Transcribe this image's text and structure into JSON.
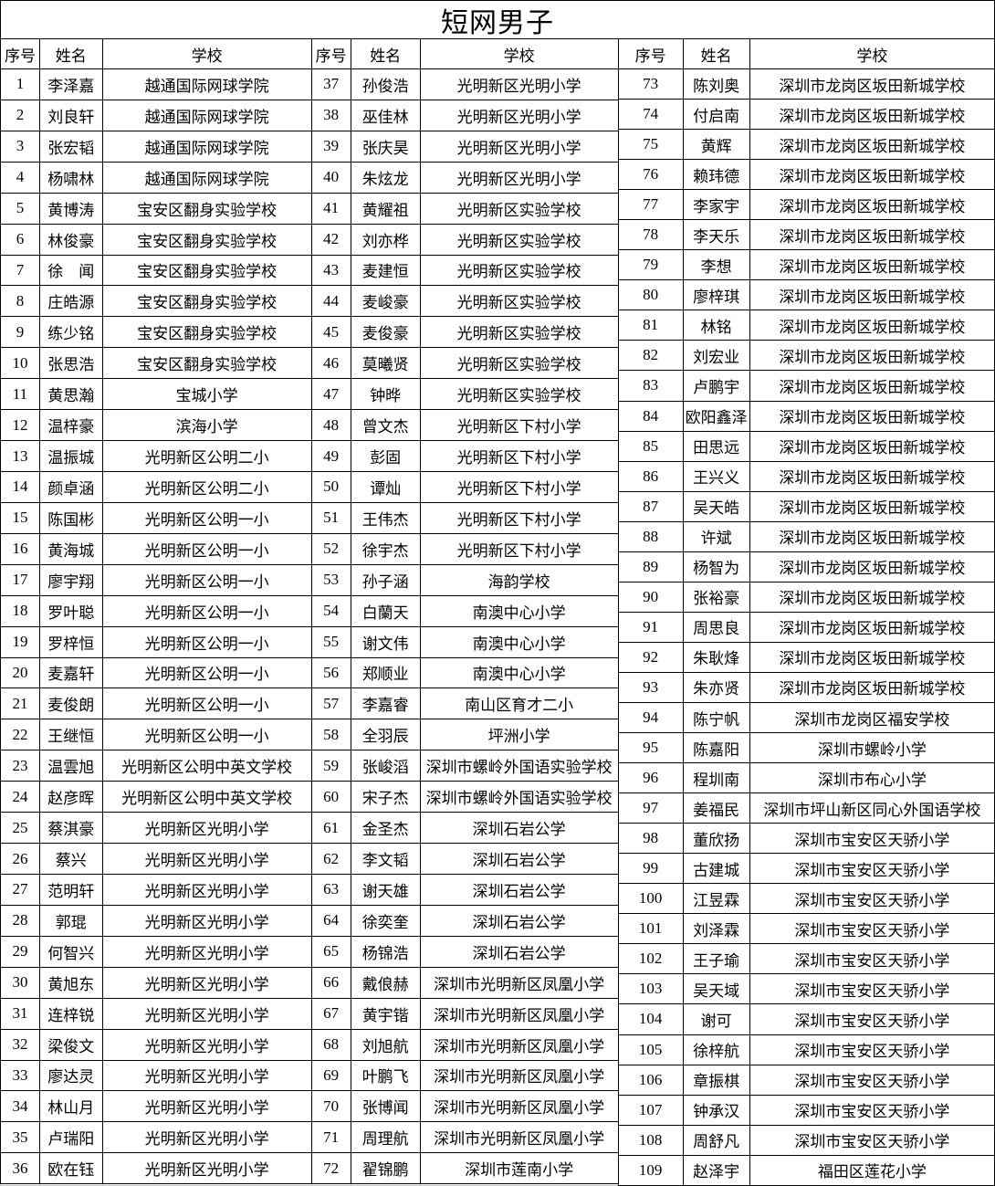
{
  "title": "短网男子",
  "columns": [
    "序号",
    "姓名",
    "学校"
  ],
  "colors": {
    "text": "#000000",
    "background": "#ffffff",
    "table_border": "#000000",
    "empty_cell_gridline": "#c9c9c9"
  },
  "groups": [
    {
      "rows": [
        {
          "no": 1,
          "name": "李泽嘉",
          "school": "越通国际网球学院"
        },
        {
          "no": 2,
          "name": "刘良轩",
          "school": "越通国际网球学院"
        },
        {
          "no": 3,
          "name": "张宏韬",
          "school": "越通国际网球学院"
        },
        {
          "no": 4,
          "name": "杨啸林",
          "school": "越通国际网球学院"
        },
        {
          "no": 5,
          "name": "黄博涛",
          "school": "宝安区翻身实验学校"
        },
        {
          "no": 6,
          "name": "林俊豪",
          "school": "宝安区翻身实验学校"
        },
        {
          "no": 7,
          "name": "徐　闻",
          "school": "宝安区翻身实验学校"
        },
        {
          "no": 8,
          "name": "庄皓源",
          "school": "宝安区翻身实验学校"
        },
        {
          "no": 9,
          "name": "练少铭",
          "school": "宝安区翻身实验学校"
        },
        {
          "no": 10,
          "name": "张思浩",
          "school": "宝安区翻身实验学校"
        },
        {
          "no": 11,
          "name": "黄思瀚",
          "school": "宝城小学"
        },
        {
          "no": 12,
          "name": "温梓豪",
          "school": "滨海小学"
        },
        {
          "no": 13,
          "name": "温振城",
          "school": "光明新区公明二小"
        },
        {
          "no": 14,
          "name": "颜卓涵",
          "school": "光明新区公明二小"
        },
        {
          "no": 15,
          "name": "陈国彬",
          "school": "光明新区公明一小"
        },
        {
          "no": 16,
          "name": "黄海城",
          "school": "光明新区公明一小"
        },
        {
          "no": 17,
          "name": "廖宇翔",
          "school": "光明新区公明一小"
        },
        {
          "no": 18,
          "name": "罗叶聪",
          "school": "光明新区公明一小"
        },
        {
          "no": 19,
          "name": "罗梓恒",
          "school": "光明新区公明一小"
        },
        {
          "no": 20,
          "name": "麦嘉轩",
          "school": "光明新区公明一小"
        },
        {
          "no": 21,
          "name": "麦俊朗",
          "school": "光明新区公明一小"
        },
        {
          "no": 22,
          "name": "王继恒",
          "school": "光明新区公明一小"
        },
        {
          "no": 23,
          "name": "温雲旭",
          "school": "光明新区公明中英文学校"
        },
        {
          "no": 24,
          "name": "赵彦晖",
          "school": "光明新区公明中英文学校"
        },
        {
          "no": 25,
          "name": "蔡淇豪",
          "school": "光明新区光明小学"
        },
        {
          "no": 26,
          "name": "蔡兴",
          "school": "光明新区光明小学"
        },
        {
          "no": 27,
          "name": "范明轩",
          "school": "光明新区光明小学"
        },
        {
          "no": 28,
          "name": "郭琨",
          "school": "光明新区光明小学"
        },
        {
          "no": 29,
          "name": "何智兴",
          "school": "光明新区光明小学"
        },
        {
          "no": 30,
          "name": "黄旭东",
          "school": "光明新区光明小学"
        },
        {
          "no": 31,
          "name": "连梓锐",
          "school": "光明新区光明小学"
        },
        {
          "no": 32,
          "name": "梁俊文",
          "school": "光明新区光明小学"
        },
        {
          "no": 33,
          "name": "廖达灵",
          "school": "光明新区光明小学"
        },
        {
          "no": 34,
          "name": "林山月",
          "school": "光明新区光明小学"
        },
        {
          "no": 35,
          "name": "卢瑞阳",
          "school": "光明新区光明小学"
        },
        {
          "no": 36,
          "name": "欧在钰",
          "school": "光明新区光明小学"
        }
      ]
    },
    {
      "rows": [
        {
          "no": 37,
          "name": "孙俊浩",
          "school": "光明新区光明小学"
        },
        {
          "no": 38,
          "name": "巫佳林",
          "school": "光明新区光明小学"
        },
        {
          "no": 39,
          "name": "张庆昊",
          "school": "光明新区光明小学"
        },
        {
          "no": 40,
          "name": "朱炫龙",
          "school": "光明新区光明小学"
        },
        {
          "no": 41,
          "name": "黄耀祖",
          "school": "光明新区实验学校"
        },
        {
          "no": 42,
          "name": "刘亦桦",
          "school": "光明新区实验学校"
        },
        {
          "no": 43,
          "name": "麦建恒",
          "school": "光明新区实验学校"
        },
        {
          "no": 44,
          "name": "麦峻豪",
          "school": "光明新区实验学校"
        },
        {
          "no": 45,
          "name": "麦俊豪",
          "school": "光明新区实验学校"
        },
        {
          "no": 46,
          "name": "莫曦贤",
          "school": "光明新区实验学校"
        },
        {
          "no": 47,
          "name": "钟晔",
          "school": "光明新区实验学校"
        },
        {
          "no": 48,
          "name": "曾文杰",
          "school": "光明新区下村小学"
        },
        {
          "no": 49,
          "name": "彭固",
          "school": "光明新区下村小学"
        },
        {
          "no": 50,
          "name": "谭灿",
          "school": "光明新区下村小学"
        },
        {
          "no": 51,
          "name": "王伟杰",
          "school": "光明新区下村小学"
        },
        {
          "no": 52,
          "name": "徐宇杰",
          "school": "光明新区下村小学"
        },
        {
          "no": 53,
          "name": "孙子涵",
          "school": "海韵学校"
        },
        {
          "no": 54,
          "name": "白蘭天",
          "school": "南澳中心小学"
        },
        {
          "no": 55,
          "name": "谢文伟",
          "school": "南澳中心小学"
        },
        {
          "no": 56,
          "name": "郑顺业",
          "school": "南澳中心小学"
        },
        {
          "no": 57,
          "name": "李嘉睿",
          "school": "南山区育才二小"
        },
        {
          "no": 58,
          "name": "全羽辰",
          "school": "坪洲小学"
        },
        {
          "no": 59,
          "name": "张峻滔",
          "school": "深圳市螺岭外国语实验学校"
        },
        {
          "no": 60,
          "name": "宋子杰",
          "school": "深圳市螺岭外国语实验学校"
        },
        {
          "no": 61,
          "name": "金圣杰",
          "school": "深圳石岩公学"
        },
        {
          "no": 62,
          "name": "李文韬",
          "school": "深圳石岩公学"
        },
        {
          "no": 63,
          "name": "谢天雄",
          "school": "深圳石岩公学"
        },
        {
          "no": 64,
          "name": "徐奕奎",
          "school": "深圳石岩公学"
        },
        {
          "no": 65,
          "name": "杨锦浩",
          "school": "深圳石岩公学"
        },
        {
          "no": 66,
          "name": "戴俍赫",
          "school": "深圳市光明新区凤凰小学"
        },
        {
          "no": 67,
          "name": "黄宇锴",
          "school": "深圳市光明新区凤凰小学"
        },
        {
          "no": 68,
          "name": "刘旭航",
          "school": "深圳市光明新区凤凰小学"
        },
        {
          "no": 69,
          "name": "叶鹏飞",
          "school": "深圳市光明新区凤凰小学"
        },
        {
          "no": 70,
          "name": "张博闻",
          "school": "深圳市光明新区凤凰小学"
        },
        {
          "no": 71,
          "name": "周理航",
          "school": "深圳市光明新区凤凰小学"
        },
        {
          "no": 72,
          "name": "翟锦鹏",
          "school": "深圳市莲南小学"
        }
      ]
    },
    {
      "rows": [
        {
          "no": 73,
          "name": "陈刘奥",
          "school": "深圳市龙岗区坂田新城学校"
        },
        {
          "no": 74,
          "name": "付启南",
          "school": "深圳市龙岗区坂田新城学校"
        },
        {
          "no": 75,
          "name": "黄辉",
          "school": "深圳市龙岗区坂田新城学校"
        },
        {
          "no": 76,
          "name": "赖玮德",
          "school": "深圳市龙岗区坂田新城学校"
        },
        {
          "no": 77,
          "name": "李家宇",
          "school": "深圳市龙岗区坂田新城学校"
        },
        {
          "no": 78,
          "name": "李天乐",
          "school": "深圳市龙岗区坂田新城学校"
        },
        {
          "no": 79,
          "name": "李想",
          "school": "深圳市龙岗区坂田新城学校"
        },
        {
          "no": 80,
          "name": "廖梓琪",
          "school": "深圳市龙岗区坂田新城学校"
        },
        {
          "no": 81,
          "name": "林铭",
          "school": "深圳市龙岗区坂田新城学校"
        },
        {
          "no": 82,
          "name": "刘宏业",
          "school": "深圳市龙岗区坂田新城学校"
        },
        {
          "no": 83,
          "name": "卢鹏宇",
          "school": "深圳市龙岗区坂田新城学校"
        },
        {
          "no": 84,
          "name": "欧阳鑫泽",
          "school": "深圳市龙岗区坂田新城学校"
        },
        {
          "no": 85,
          "name": "田思远",
          "school": "深圳市龙岗区坂田新城学校"
        },
        {
          "no": 86,
          "name": "王兴义",
          "school": "深圳市龙岗区坂田新城学校"
        },
        {
          "no": 87,
          "name": "吴天皓",
          "school": "深圳市龙岗区坂田新城学校"
        },
        {
          "no": 88,
          "name": "许斌",
          "school": "深圳市龙岗区坂田新城学校"
        },
        {
          "no": 89,
          "name": "杨智为",
          "school": "深圳市龙岗区坂田新城学校"
        },
        {
          "no": 90,
          "name": "张裕豪",
          "school": "深圳市龙岗区坂田新城学校"
        },
        {
          "no": 91,
          "name": "周思良",
          "school": "深圳市龙岗区坂田新城学校"
        },
        {
          "no": 92,
          "name": "朱耿烽",
          "school": "深圳市龙岗区坂田新城学校"
        },
        {
          "no": 93,
          "name": "朱亦贤",
          "school": "深圳市龙岗区坂田新城学校"
        },
        {
          "no": 94,
          "name": "陈宁帆",
          "school": "深圳市龙岗区福安学校"
        },
        {
          "no": 95,
          "name": "陈嘉阳",
          "school": "深圳市螺岭小学"
        },
        {
          "no": 96,
          "name": "程圳南",
          "school": "深圳市布心小学"
        },
        {
          "no": 97,
          "name": "姜福民",
          "school": "深圳市坪山新区同心外国语学校"
        },
        {
          "no": 98,
          "name": "董欣扬",
          "school": "深圳市宝安区天骄小学"
        },
        {
          "no": 99,
          "name": "古建城",
          "school": "深圳市宝安区天骄小学"
        },
        {
          "no": 100,
          "name": "江昱霖",
          "school": "深圳市宝安区天骄小学"
        },
        {
          "no": 101,
          "name": "刘泽霖",
          "school": "深圳市宝安区天骄小学"
        },
        {
          "no": 102,
          "name": "王子瑜",
          "school": "深圳市宝安区天骄小学"
        },
        {
          "no": 103,
          "name": "吴天域",
          "school": "深圳市宝安区天骄小学"
        },
        {
          "no": 104,
          "name": "谢可",
          "school": "深圳市宝安区天骄小学"
        },
        {
          "no": 105,
          "name": "徐梓航",
          "school": "深圳市宝安区天骄小学"
        },
        {
          "no": 106,
          "name": "章振棋",
          "school": "深圳市宝安区天骄小学"
        },
        {
          "no": 107,
          "name": "钟承汉",
          "school": "深圳市宝安区天骄小学"
        },
        {
          "no": 108,
          "name": "周舒凡",
          "school": "深圳市宝安区天骄小学"
        },
        {
          "no": 109,
          "name": "赵泽宇",
          "school": "福田区莲花小学"
        }
      ]
    }
  ]
}
